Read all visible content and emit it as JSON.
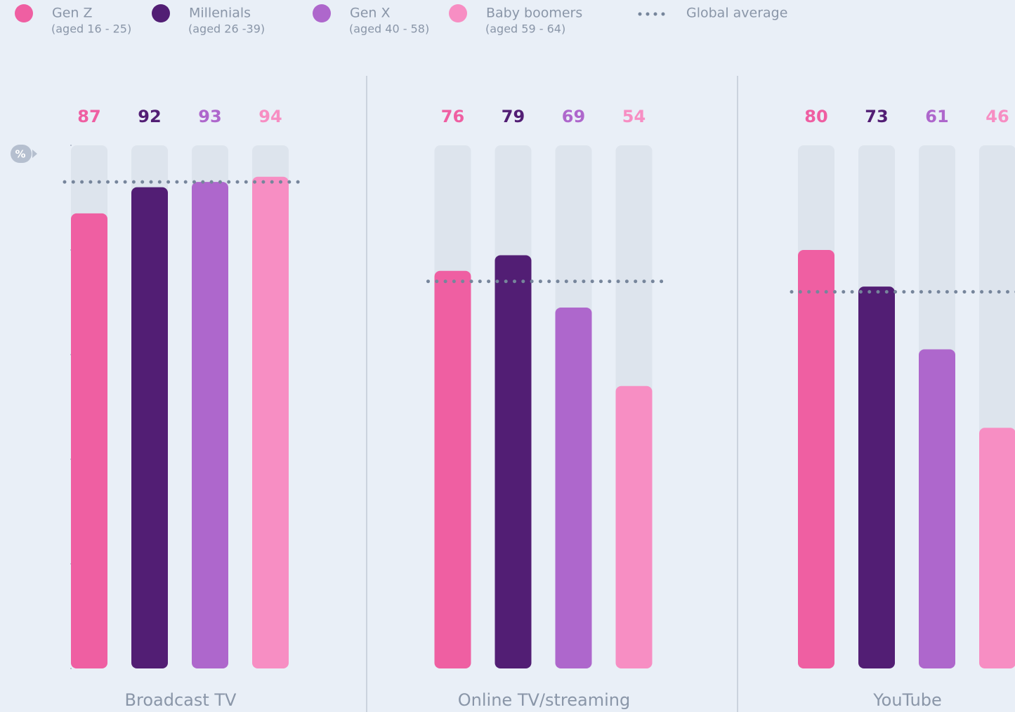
{
  "chart_data": {
    "type": "bar",
    "y_label": "%",
    "categories": [
      "Broadcast TV",
      "Online TV/streaming",
      "YouTube"
    ],
    "series": [
      {
        "name": "Gen Z",
        "age": "(aged 16 - 25)",
        "color": "#ef5fa2",
        "values": [
          87,
          76,
          80
        ]
      },
      {
        "name": "Millenials",
        "age": "(aged 26 -39)",
        "color": "#521e74",
        "values": [
          92,
          79,
          73
        ]
      },
      {
        "name": "Gen X",
        "age": "(aged 40 - 58)",
        "color": "#ae67cc",
        "values": [
          93,
          69,
          61
        ]
      },
      {
        "name": "Baby boomers",
        "age": "(aged 59 - 64)",
        "color": "#f78ec3",
        "values": [
          94,
          54,
          46
        ]
      }
    ],
    "average": {
      "name": "Global average",
      "color": "#76859b",
      "values": [
        93,
        74,
        72
      ]
    },
    "ylim": [
      0,
      100
    ],
    "yticks": [
      0,
      20,
      40,
      60,
      80,
      100
    ],
    "track_color": "#dde4ed"
  }
}
